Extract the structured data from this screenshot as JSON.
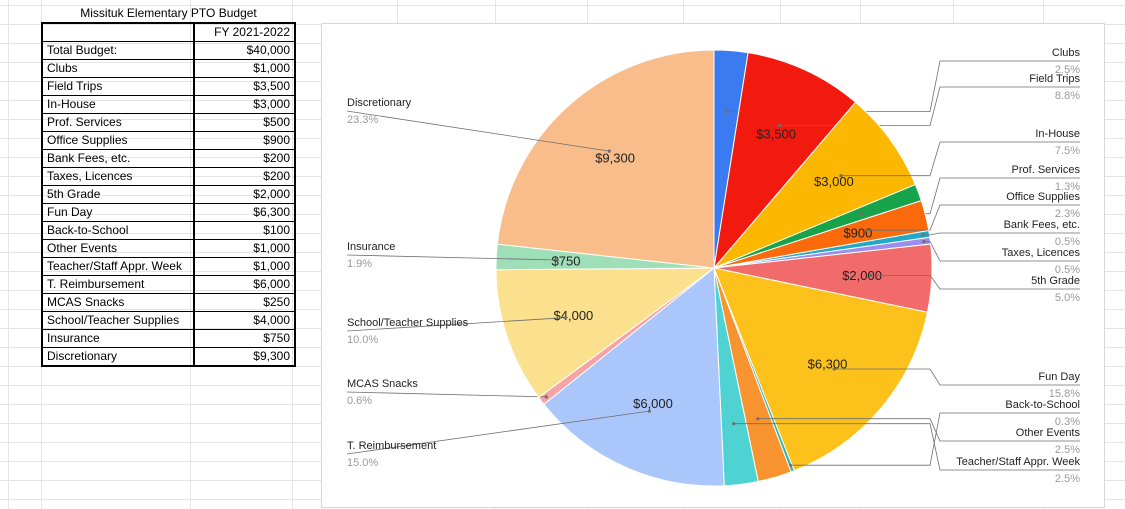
{
  "table": {
    "title": "Missituk Elementary PTO Budget",
    "fy_header": "FY 2021-2022",
    "total_label": "Total Budget:",
    "total_value": "$40,000",
    "rows": [
      {
        "label": "Clubs",
        "value": "$1,000"
      },
      {
        "label": "Field Trips",
        "value": "$3,500"
      },
      {
        "label": "In-House",
        "value": "$3,000"
      },
      {
        "label": "Prof. Services",
        "value": "$500"
      },
      {
        "label": "Office Supplies",
        "value": "$900"
      },
      {
        "label": "Bank Fees, etc.",
        "value": "$200"
      },
      {
        "label": "Taxes, Licences",
        "value": "$200"
      },
      {
        "label": "5th Grade",
        "value": "$2,000"
      },
      {
        "label": "Fun Day",
        "value": "$6,300"
      },
      {
        "label": "Back-to-School",
        "value": "$100"
      },
      {
        "label": "Other Events",
        "value": "$1,000"
      },
      {
        "label": "Teacher/Staff Appr. Week",
        "value": "$1,000"
      },
      {
        "label": "T. Reimbursement",
        "value": "$6,000"
      },
      {
        "label": "MCAS Snacks",
        "value": "$250"
      },
      {
        "label": "School/Teacher Supplies",
        "value": "$4,000"
      },
      {
        "label": "Insurance",
        "value": "$750"
      },
      {
        "label": "Discretionary",
        "value": "$9,300"
      }
    ]
  },
  "chart_data": {
    "type": "pie",
    "title": "",
    "start_angle_deg": 0,
    "direction": "clockwise",
    "slices": [
      {
        "label": "Clubs",
        "value": 1000,
        "percent": "2.5%",
        "color": "#3a7bf2",
        "value_label": "",
        "side": "right"
      },
      {
        "label": "Field Trips",
        "value": 3500,
        "percent": "8.8%",
        "color": "#f21a0e",
        "value_label": "$3,500",
        "side": "right"
      },
      {
        "label": "In-House",
        "value": 3000,
        "percent": "7.5%",
        "color": "#fcb800",
        "value_label": "$3,000",
        "side": "right"
      },
      {
        "label": "Prof. Services",
        "value": 500,
        "percent": "1.3%",
        "color": "#16a34a",
        "value_label": "",
        "side": "right"
      },
      {
        "label": "Office Supplies",
        "value": 900,
        "percent": "2.3%",
        "color": "#fb6a0a",
        "value_label": "$900",
        "side": "right"
      },
      {
        "label": "Bank Fees, etc.",
        "value": 200,
        "percent": "0.5%",
        "color": "#1fa9c6",
        "value_label": "",
        "side": "right"
      },
      {
        "label": "Taxes, Licences",
        "value": 200,
        "percent": "0.5%",
        "color": "#9b8ef0",
        "value_label": "",
        "side": "right"
      },
      {
        "label": "5th Grade",
        "value": 2000,
        "percent": "5.0%",
        "color": "#f26b6b",
        "value_label": "$2,000",
        "side": "right"
      },
      {
        "label": "Fun Day",
        "value": 6300,
        "percent": "15.8%",
        "color": "#fcc21b",
        "value_label": "$6,300",
        "side": "right"
      },
      {
        "label": "Back-to-School",
        "value": 100,
        "percent": "0.3%",
        "color": "#2eb5a7",
        "value_label": "",
        "side": "right"
      },
      {
        "label": "Other Events",
        "value": 1000,
        "percent": "2.5%",
        "color": "#f79430",
        "value_label": "",
        "side": "right"
      },
      {
        "label": "Teacher/Staff Appr. Week",
        "value": 1000,
        "percent": "2.5%",
        "color": "#4fd2d2",
        "value_label": "",
        "side": "right"
      },
      {
        "label": "T. Reimbursement",
        "value": 6000,
        "percent": "15.0%",
        "color": "#aac6fb",
        "value_label": "$6,000",
        "side": "left"
      },
      {
        "label": "MCAS Snacks",
        "value": 250,
        "percent": "0.6%",
        "color": "#f6a3a3",
        "value_label": "",
        "side": "left"
      },
      {
        "label": "School/Teacher Supplies",
        "value": 4000,
        "percent": "10.0%",
        "color": "#fbe08e",
        "value_label": "$4,000",
        "side": "left"
      },
      {
        "label": "Insurance",
        "value": 750,
        "percent": "1.9%",
        "color": "#9fdfb8",
        "value_label": "$750",
        "side": "left"
      },
      {
        "label": "Discretionary",
        "value": 9300,
        "percent": "23.3%",
        "color": "#f9bc8b",
        "value_label": "$9,300",
        "side": "left"
      }
    ]
  }
}
